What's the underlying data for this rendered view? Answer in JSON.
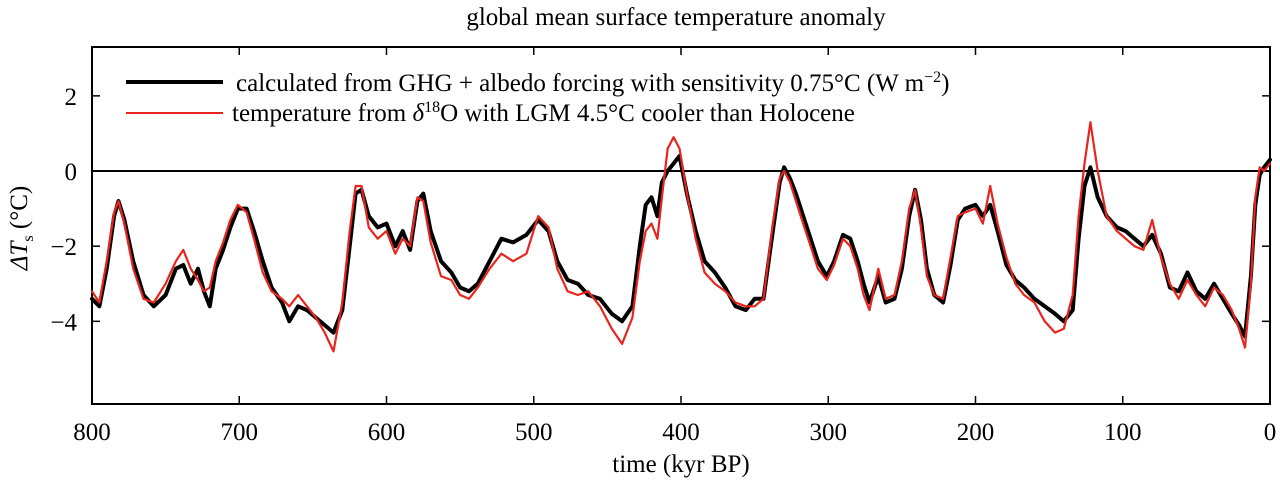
{
  "chart_data": {
    "type": "line",
    "title": "global mean surface temperature anomaly",
    "xlabel": "time (kyr BP)",
    "ylabel": {
      "symbol": "ΔT",
      "subscript": "s",
      "unit": "(°C)"
    },
    "xlim": [
      800,
      0
    ],
    "ylim": [
      -6.2,
      3.3
    ],
    "xticks": [
      800,
      700,
      600,
      500,
      400,
      300,
      200,
      100,
      0
    ],
    "yticks": [
      2,
      0,
      -2,
      -4
    ],
    "ytick_labels": [
      "2",
      "0",
      "−2",
      "−4"
    ],
    "zero_line": true,
    "legend": {
      "placement": "top-left",
      "entries": [
        {
          "color": "#000000",
          "text": "calculated from GHG + albedo forcing with sensitivity 0.75°C (W m",
          "superscript": "−2",
          "text_after": ")"
        },
        {
          "color": "#e8251d",
          "text": "temperature from ",
          "italic": "δ",
          "superscript": "18",
          "text_after": "O with LGM 4.5°C cooler than Holocene"
        }
      ]
    },
    "series": [
      {
        "name": "calculated from GHG + albedo forcing with sensitivity 0.75°C (W m−2)",
        "color": "#000000",
        "points": [
          [
            800,
            -3.4
          ],
          [
            795,
            -3.6
          ],
          [
            790,
            -2.6
          ],
          [
            785,
            -1.2
          ],
          [
            782,
            -0.8
          ],
          [
            778,
            -1.3
          ],
          [
            772,
            -2.4
          ],
          [
            765,
            -3.3
          ],
          [
            758,
            -3.6
          ],
          [
            750,
            -3.3
          ],
          [
            743,
            -2.6
          ],
          [
            738,
            -2.5
          ],
          [
            733,
            -3.0
          ],
          [
            728,
            -2.6
          ],
          [
            724,
            -3.2
          ],
          [
            720,
            -3.6
          ],
          [
            716,
            -2.6
          ],
          [
            711,
            -2.1
          ],
          [
            706,
            -1.5
          ],
          [
            701,
            -1.0
          ],
          [
            695,
            -1.0
          ],
          [
            690,
            -1.6
          ],
          [
            684,
            -2.4
          ],
          [
            678,
            -3.1
          ],
          [
            671,
            -3.5
          ],
          [
            666,
            -4.0
          ],
          [
            660,
            -3.6
          ],
          [
            654,
            -3.7
          ],
          [
            648,
            -3.9
          ],
          [
            642,
            -4.1
          ],
          [
            636,
            -4.3
          ],
          [
            630,
            -3.7
          ],
          [
            625,
            -2.0
          ],
          [
            621,
            -0.6
          ],
          [
            617,
            -0.5
          ],
          [
            612,
            -1.2
          ],
          [
            606,
            -1.5
          ],
          [
            600,
            -1.4
          ],
          [
            594,
            -2.0
          ],
          [
            589,
            -1.6
          ],
          [
            584,
            -2.1
          ],
          [
            579,
            -0.8
          ],
          [
            575,
            -0.6
          ],
          [
            570,
            -1.6
          ],
          [
            563,
            -2.4
          ],
          [
            556,
            -2.7
          ],
          [
            550,
            -3.1
          ],
          [
            544,
            -3.2
          ],
          [
            538,
            -3.0
          ],
          [
            530,
            -2.4
          ],
          [
            522,
            -1.8
          ],
          [
            514,
            -1.9
          ],
          [
            505,
            -1.7
          ],
          [
            497,
            -1.3
          ],
          [
            490,
            -1.6
          ],
          [
            484,
            -2.4
          ],
          [
            477,
            -2.9
          ],
          [
            470,
            -3.0
          ],
          [
            463,
            -3.3
          ],
          [
            455,
            -3.4
          ],
          [
            447,
            -3.8
          ],
          [
            440,
            -4.0
          ],
          [
            433,
            -3.6
          ],
          [
            428,
            -2.0
          ],
          [
            424,
            -0.9
          ],
          [
            420,
            -0.7
          ],
          [
            416,
            -1.2
          ],
          [
            413,
            -0.3
          ],
          [
            409,
            0.0
          ],
          [
            405,
            0.2
          ],
          [
            401,
            0.4
          ],
          [
            396,
            -0.6
          ],
          [
            390,
            -1.6
          ],
          [
            384,
            -2.4
          ],
          [
            377,
            -2.7
          ],
          [
            370,
            -3.1
          ],
          [
            363,
            -3.6
          ],
          [
            356,
            -3.7
          ],
          [
            350,
            -3.4
          ],
          [
            344,
            -3.4
          ],
          [
            338,
            -1.7
          ],
          [
            333,
            -0.3
          ],
          [
            330,
            0.1
          ],
          [
            326,
            -0.2
          ],
          [
            322,
            -0.6
          ],
          [
            317,
            -1.2
          ],
          [
            312,
            -1.8
          ],
          [
            307,
            -2.4
          ],
          [
            301,
            -2.8
          ],
          [
            296,
            -2.4
          ],
          [
            290,
            -1.7
          ],
          [
            285,
            -1.8
          ],
          [
            280,
            -2.4
          ],
          [
            276,
            -3.0
          ],
          [
            272,
            -3.5
          ],
          [
            266,
            -2.8
          ],
          [
            261,
            -3.5
          ],
          [
            255,
            -3.4
          ],
          [
            250,
            -2.6
          ],
          [
            245,
            -1.2
          ],
          [
            241,
            -0.5
          ],
          [
            237,
            -1.3
          ],
          [
            233,
            -2.6
          ],
          [
            228,
            -3.3
          ],
          [
            222,
            -3.5
          ],
          [
            217,
            -2.5
          ],
          [
            212,
            -1.3
          ],
          [
            207,
            -1.0
          ],
          [
            200,
            -0.9
          ],
          [
            195,
            -1.2
          ],
          [
            190,
            -0.9
          ],
          [
            185,
            -1.6
          ],
          [
            179,
            -2.5
          ],
          [
            173,
            -2.9
          ],
          [
            167,
            -3.1
          ],
          [
            160,
            -3.4
          ],
          [
            153,
            -3.6
          ],
          [
            146,
            -3.8
          ],
          [
            140,
            -4.0
          ],
          [
            134,
            -3.7
          ],
          [
            130,
            -1.8
          ],
          [
            126,
            -0.4
          ],
          [
            122,
            0.1
          ],
          [
            117,
            -0.7
          ],
          [
            111,
            -1.2
          ],
          [
            104,
            -1.5
          ],
          [
            98,
            -1.6
          ],
          [
            92,
            -1.8
          ],
          [
            86,
            -2.0
          ],
          [
            80,
            -1.7
          ],
          [
            74,
            -2.2
          ],
          [
            68,
            -3.1
          ],
          [
            62,
            -3.2
          ],
          [
            56,
            -2.7
          ],
          [
            50,
            -3.2
          ],
          [
            44,
            -3.4
          ],
          [
            38,
            -3.0
          ],
          [
            32,
            -3.4
          ],
          [
            26,
            -3.8
          ],
          [
            21,
            -4.1
          ],
          [
            17,
            -4.4
          ],
          [
            13,
            -2.8
          ],
          [
            10,
            -0.9
          ],
          [
            7,
            -0.1
          ],
          [
            4,
            0.1
          ],
          [
            0,
            0.3
          ]
        ]
      },
      {
        "name": "temperature from δ18O with LGM 4.5°C cooler than Holocene",
        "color": "#e8251d",
        "points": [
          [
            800,
            -3.2
          ],
          [
            795,
            -3.5
          ],
          [
            790,
            -2.4
          ],
          [
            785,
            -1.1
          ],
          [
            782,
            -0.8
          ],
          [
            778,
            -1.4
          ],
          [
            772,
            -2.6
          ],
          [
            765,
            -3.4
          ],
          [
            758,
            -3.5
          ],
          [
            750,
            -3.0
          ],
          [
            743,
            -2.4
          ],
          [
            738,
            -2.1
          ],
          [
            733,
            -2.6
          ],
          [
            728,
            -2.9
          ],
          [
            724,
            -3.2
          ],
          [
            720,
            -3.1
          ],
          [
            716,
            -2.4
          ],
          [
            711,
            -1.9
          ],
          [
            706,
            -1.3
          ],
          [
            701,
            -0.9
          ],
          [
            695,
            -1.1
          ],
          [
            690,
            -1.8
          ],
          [
            684,
            -2.7
          ],
          [
            678,
            -3.2
          ],
          [
            671,
            -3.4
          ],
          [
            666,
            -3.6
          ],
          [
            660,
            -3.3
          ],
          [
            654,
            -3.6
          ],
          [
            648,
            -3.9
          ],
          [
            642,
            -4.3
          ],
          [
            636,
            -4.8
          ],
          [
            630,
            -3.5
          ],
          [
            625,
            -1.6
          ],
          [
            621,
            -0.4
          ],
          [
            617,
            -0.4
          ],
          [
            612,
            -1.5
          ],
          [
            606,
            -1.8
          ],
          [
            600,
            -1.6
          ],
          [
            594,
            -2.2
          ],
          [
            589,
            -1.8
          ],
          [
            584,
            -2.0
          ],
          [
            579,
            -0.7
          ],
          [
            575,
            -0.8
          ],
          [
            570,
            -1.9
          ],
          [
            563,
            -2.8
          ],
          [
            556,
            -2.9
          ],
          [
            550,
            -3.3
          ],
          [
            544,
            -3.4
          ],
          [
            538,
            -3.1
          ],
          [
            530,
            -2.6
          ],
          [
            522,
            -2.2
          ],
          [
            514,
            -2.4
          ],
          [
            505,
            -2.2
          ],
          [
            497,
            -1.2
          ],
          [
            490,
            -1.5
          ],
          [
            484,
            -2.6
          ],
          [
            477,
            -3.2
          ],
          [
            470,
            -3.3
          ],
          [
            463,
            -3.2
          ],
          [
            455,
            -3.6
          ],
          [
            447,
            -4.2
          ],
          [
            440,
            -4.6
          ],
          [
            433,
            -3.9
          ],
          [
            428,
            -2.4
          ],
          [
            424,
            -1.6
          ],
          [
            420,
            -1.4
          ],
          [
            416,
            -1.8
          ],
          [
            413,
            -0.7
          ],
          [
            409,
            0.6
          ],
          [
            405,
            0.9
          ],
          [
            401,
            0.6
          ],
          [
            396,
            -0.6
          ],
          [
            390,
            -1.8
          ],
          [
            384,
            -2.7
          ],
          [
            377,
            -3.0
          ],
          [
            370,
            -3.2
          ],
          [
            363,
            -3.5
          ],
          [
            356,
            -3.6
          ],
          [
            350,
            -3.6
          ],
          [
            344,
            -3.4
          ],
          [
            338,
            -1.5
          ],
          [
            333,
            -0.2
          ],
          [
            330,
            0.0
          ],
          [
            326,
            -0.3
          ],
          [
            322,
            -0.8
          ],
          [
            317,
            -1.4
          ],
          [
            312,
            -2.0
          ],
          [
            307,
            -2.6
          ],
          [
            301,
            -2.9
          ],
          [
            296,
            -2.5
          ],
          [
            290,
            -1.8
          ],
          [
            285,
            -2.0
          ],
          [
            280,
            -2.6
          ],
          [
            276,
            -3.3
          ],
          [
            272,
            -3.7
          ],
          [
            266,
            -2.6
          ],
          [
            261,
            -3.4
          ],
          [
            255,
            -3.3
          ],
          [
            250,
            -2.4
          ],
          [
            245,
            -1.0
          ],
          [
            241,
            -0.5
          ],
          [
            237,
            -1.5
          ],
          [
            233,
            -2.8
          ],
          [
            228,
            -3.3
          ],
          [
            222,
            -3.4
          ],
          [
            217,
            -2.3
          ],
          [
            212,
            -1.2
          ],
          [
            207,
            -1.1
          ],
          [
            200,
            -1.0
          ],
          [
            195,
            -1.4
          ],
          [
            190,
            -0.4
          ],
          [
            185,
            -1.4
          ],
          [
            179,
            -2.3
          ],
          [
            173,
            -3.0
          ],
          [
            167,
            -3.3
          ],
          [
            160,
            -3.5
          ],
          [
            153,
            -4.0
          ],
          [
            146,
            -4.3
          ],
          [
            140,
            -4.2
          ],
          [
            134,
            -3.3
          ],
          [
            130,
            -1.2
          ],
          [
            126,
            0.2
          ],
          [
            122,
            1.3
          ],
          [
            117,
            0.0
          ],
          [
            111,
            -1.2
          ],
          [
            104,
            -1.6
          ],
          [
            98,
            -1.8
          ],
          [
            92,
            -2.0
          ],
          [
            86,
            -2.1
          ],
          [
            80,
            -1.3
          ],
          [
            74,
            -2.3
          ],
          [
            68,
            -3.0
          ],
          [
            62,
            -3.4
          ],
          [
            56,
            -2.9
          ],
          [
            50,
            -3.3
          ],
          [
            44,
            -3.6
          ],
          [
            38,
            -3.1
          ],
          [
            32,
            -3.3
          ],
          [
            26,
            -3.7
          ],
          [
            21,
            -4.2
          ],
          [
            17,
            -4.7
          ],
          [
            13,
            -3.0
          ],
          [
            10,
            -0.7
          ],
          [
            7,
            0.1
          ],
          [
            4,
            0.0
          ],
          [
            0,
            0.2
          ]
        ]
      }
    ]
  }
}
